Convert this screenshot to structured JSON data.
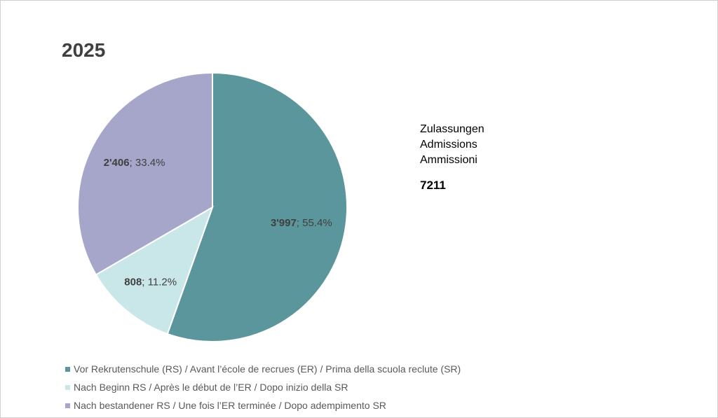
{
  "chart_data": {
    "type": "pie",
    "title": "2025",
    "slices": [
      {
        "label": "Vor Rekrutenschule (RS) / Avant l’école de recrues (ER) / Prima della scuola reclute (SR)",
        "value": 3997,
        "value_label": "3'997",
        "percent_label": "55.4%",
        "color": "#5b969c"
      },
      {
        "label": "Nach Beginn RS / Après le début de l’ER / Dopo inizio della SR",
        "value": 808,
        "value_label": "808",
        "percent_label": "11.2%",
        "color": "#c9e6e8"
      },
      {
        "label": "Nach bestandener RS / Une fois l’ER terminée / Dopo adempimento SR",
        "value": 2406,
        "value_label": "2'406",
        "percent_label": "33.4%",
        "color": "#a5a6c9"
      }
    ],
    "legend_position": "bottom-left"
  },
  "info": {
    "line1": "Zulassungen",
    "line2": "Admissions",
    "line3": "Ammissioni",
    "total": "7211"
  }
}
